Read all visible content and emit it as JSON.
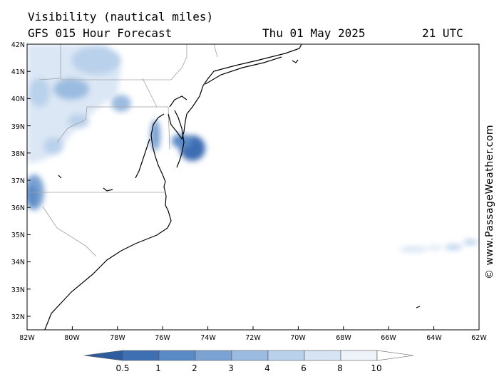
{
  "header": {
    "title": "Visibility (nautical miles)",
    "subtitle": "GFS 015 Hour Forecast",
    "date": "Thu 01 May 2025",
    "time": "21 UTC"
  },
  "credit": "© www.PassageWeather.com",
  "axes": {
    "lat_labels": [
      "42N",
      "41N",
      "40N",
      "39N",
      "38N",
      "37N",
      "36N",
      "35N",
      "34N",
      "33N",
      "32N"
    ],
    "lon_labels": [
      "82W",
      "80W",
      "78W",
      "76W",
      "74W",
      "72W",
      "70W",
      "68W",
      "66W",
      "64W",
      "62W"
    ]
  },
  "legend": {
    "labels": [
      "0.5",
      "1",
      "2",
      "3",
      "4",
      "6",
      "8",
      "10"
    ],
    "colors": [
      "#3f6fb3",
      "#5a8ac6",
      "#7aa2d3",
      "#9bbce0",
      "#bad1eb",
      "#d7e4f4",
      "#eef3fa"
    ]
  },
  "colors": {
    "coast": "#000000",
    "borders": "#a0a0a0",
    "fog_dense": "#3d6db2",
    "fog_light": "#cfdff2"
  }
}
